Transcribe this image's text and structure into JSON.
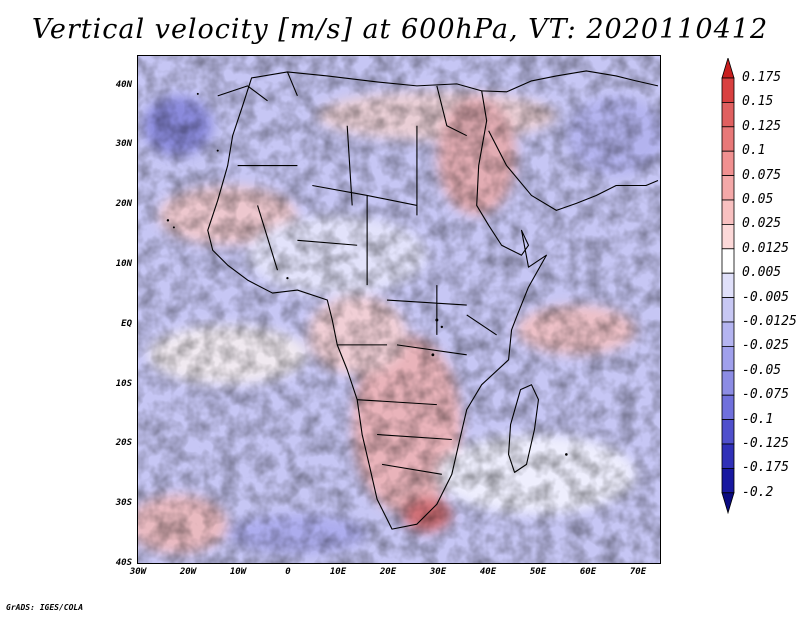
{
  "title": "Vertical velocity [m/s] at 600hPa, VT: 2020110412",
  "map": {
    "lat_labels": [
      "40N",
      "30N",
      "20N",
      "10N",
      "EQ",
      "10S",
      "20S",
      "30S",
      "40S"
    ],
    "lon_labels": [
      "30W",
      "20W",
      "10W",
      "0",
      "10E",
      "20E",
      "30E",
      "40E",
      "50E",
      "60E",
      "70E"
    ],
    "lat_range": [
      -40,
      45
    ],
    "lon_range": [
      -30,
      75
    ]
  },
  "colorbar": {
    "labels": [
      "0.175",
      "0.15",
      "0.125",
      "0.1",
      "0.075",
      "0.05",
      "0.025",
      "0.0125",
      "0.005",
      "-0.005",
      "-0.0125",
      "-0.025",
      "-0.05",
      "-0.075",
      "-0.1",
      "-0.125",
      "-0.175",
      "-0.2"
    ],
    "colors": [
      "#c81e1e",
      "#d84040",
      "#e06060",
      "#e87878",
      "#f09090",
      "#f4a8a8",
      "#f8c0c0",
      "#fcd8d8",
      "#ffffff",
      "#e0e0fa",
      "#c8c8f4",
      "#b4b4f0",
      "#a0a0ec",
      "#8c8ce4",
      "#7070dc",
      "#5050cc",
      "#3030b8",
      "#1818a0",
      "#0a0a80"
    ]
  },
  "credit": "GrADS: IGES/COLA"
}
